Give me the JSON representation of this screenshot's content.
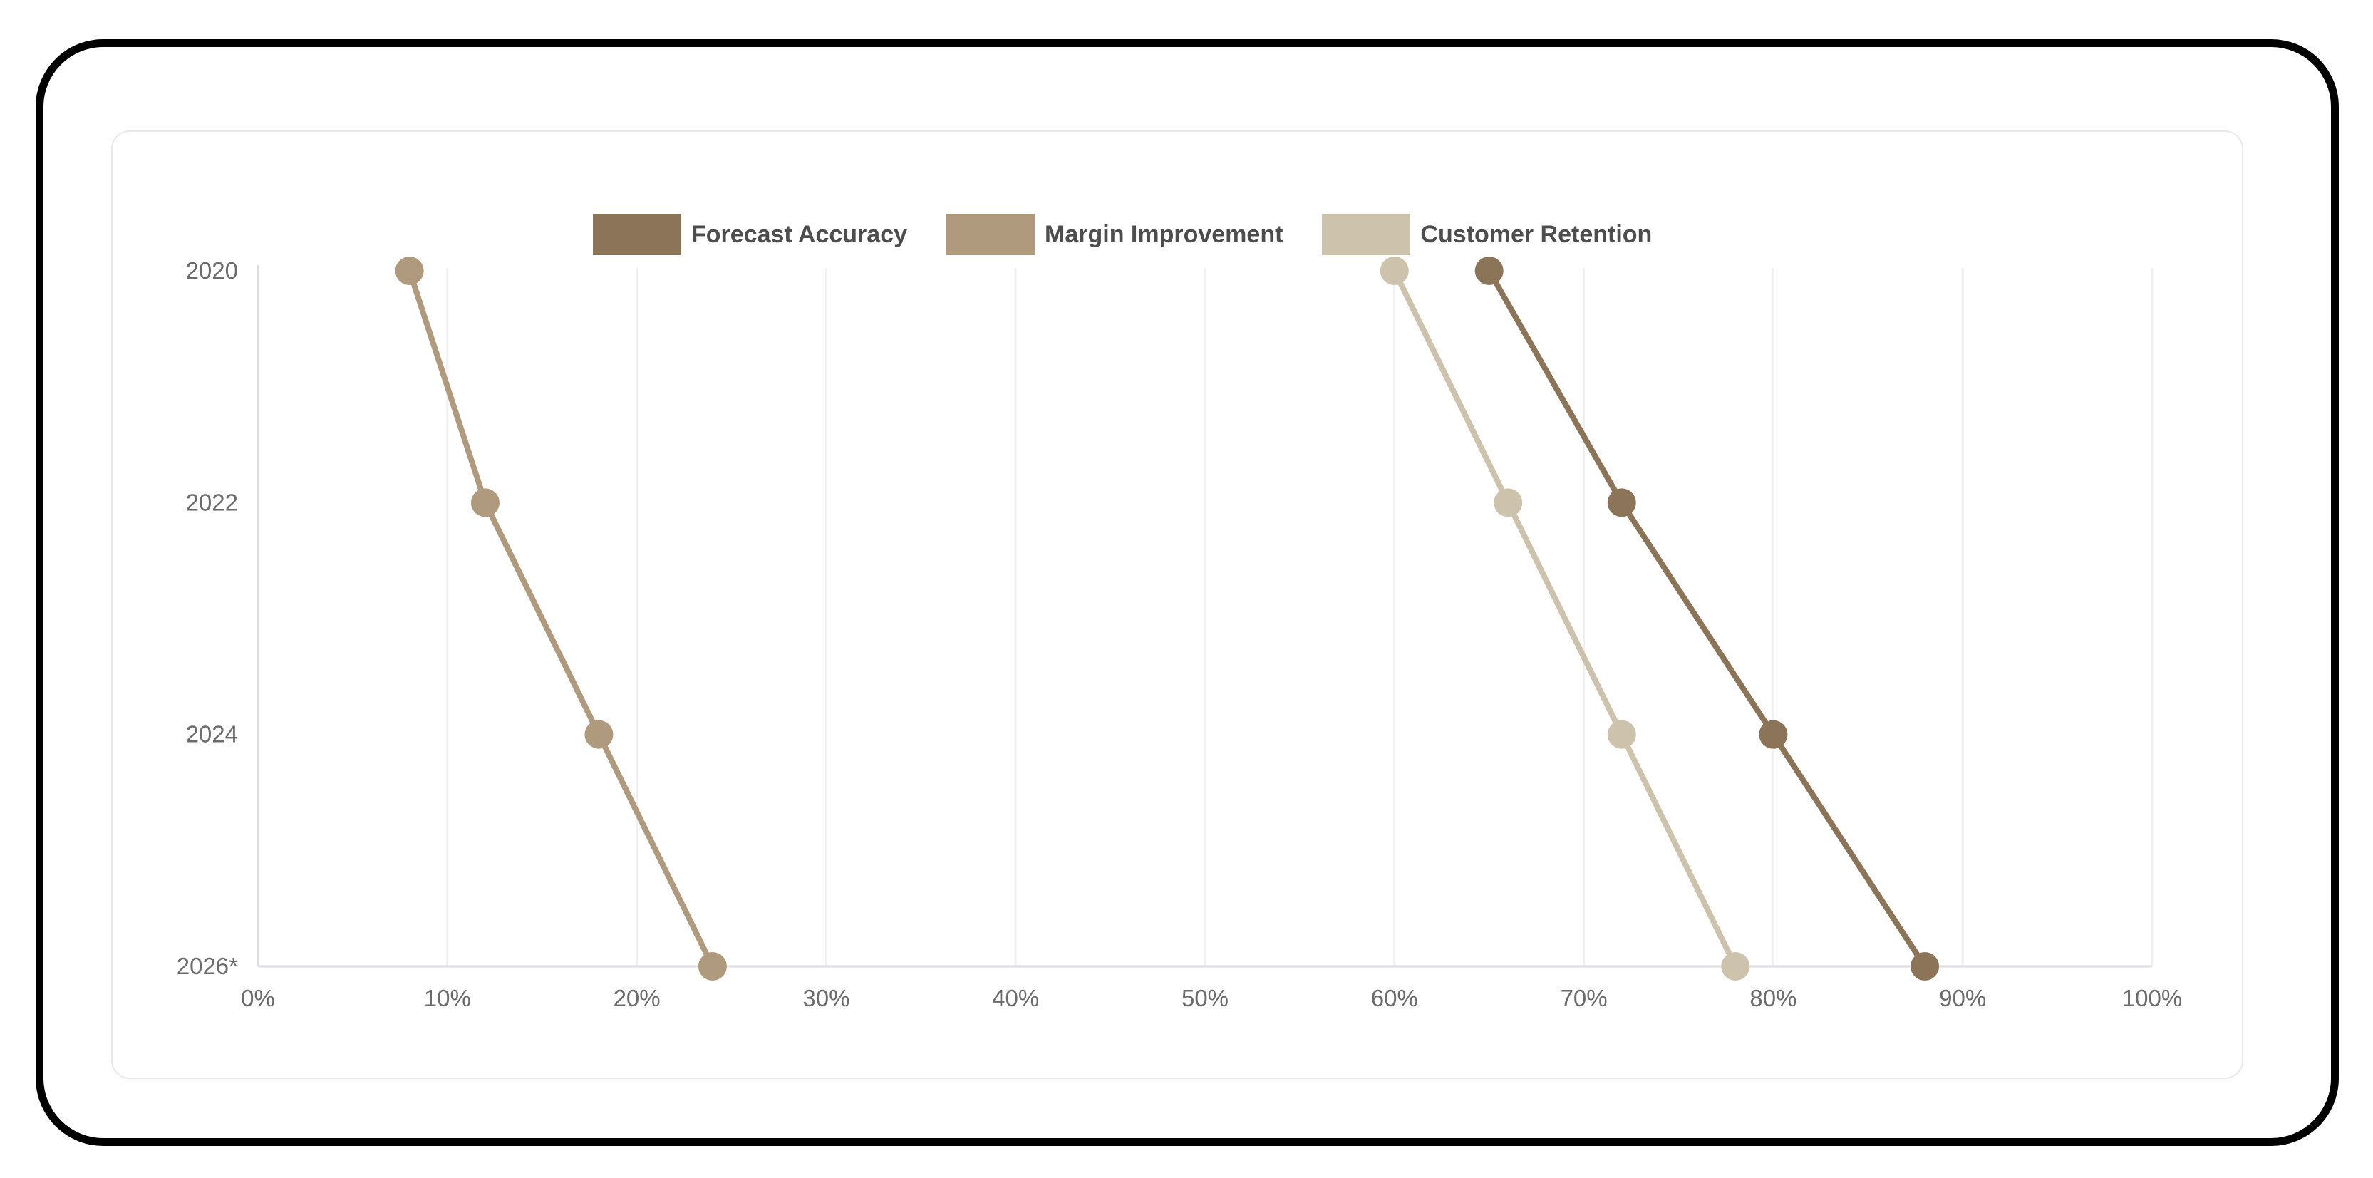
{
  "frame": {
    "outer_border_color": "#000000",
    "card_border_color": "#e9e9ec",
    "background_color": "#ffffff"
  },
  "legend": {
    "items": [
      {
        "label": "Forecast Accuracy",
        "color": "#8C7458"
      },
      {
        "label": "Margin Improvement",
        "color": "#B09A7E"
      },
      {
        "label": "Customer Retention",
        "color": "#CDC2AC"
      }
    ]
  },
  "chart_data": {
    "type": "line",
    "orientation": "horizontal",
    "title": "",
    "categories": [
      "2020",
      "2022",
      "2024",
      "2026*"
    ],
    "series": [
      {
        "name": "Forecast Accuracy",
        "color": "#8C7458",
        "values": [
          65,
          72,
          80,
          88
        ]
      },
      {
        "name": "Margin Improvement",
        "color": "#B09A7E",
        "values": [
          8,
          12,
          18,
          24
        ]
      },
      {
        "name": "Customer Retention",
        "color": "#CDC2AC",
        "values": [
          60,
          66,
          72,
          78
        ]
      }
    ],
    "x_axis": {
      "min": 0,
      "max": 100,
      "tick_labels": [
        "0%",
        "10%",
        "20%",
        "30%",
        "40%",
        "50%",
        "60%",
        "70%",
        "80%",
        "90%",
        "100%"
      ]
    },
    "y_axis": {
      "tick_labels": [
        "2020",
        "2022",
        "2024",
        "2026*"
      ]
    },
    "grid": true,
    "legend_position": "top",
    "axis_label_color": "#6b6b6b",
    "grid_color": "#f0f0f0",
    "axis_line_color": "#dedee2"
  }
}
